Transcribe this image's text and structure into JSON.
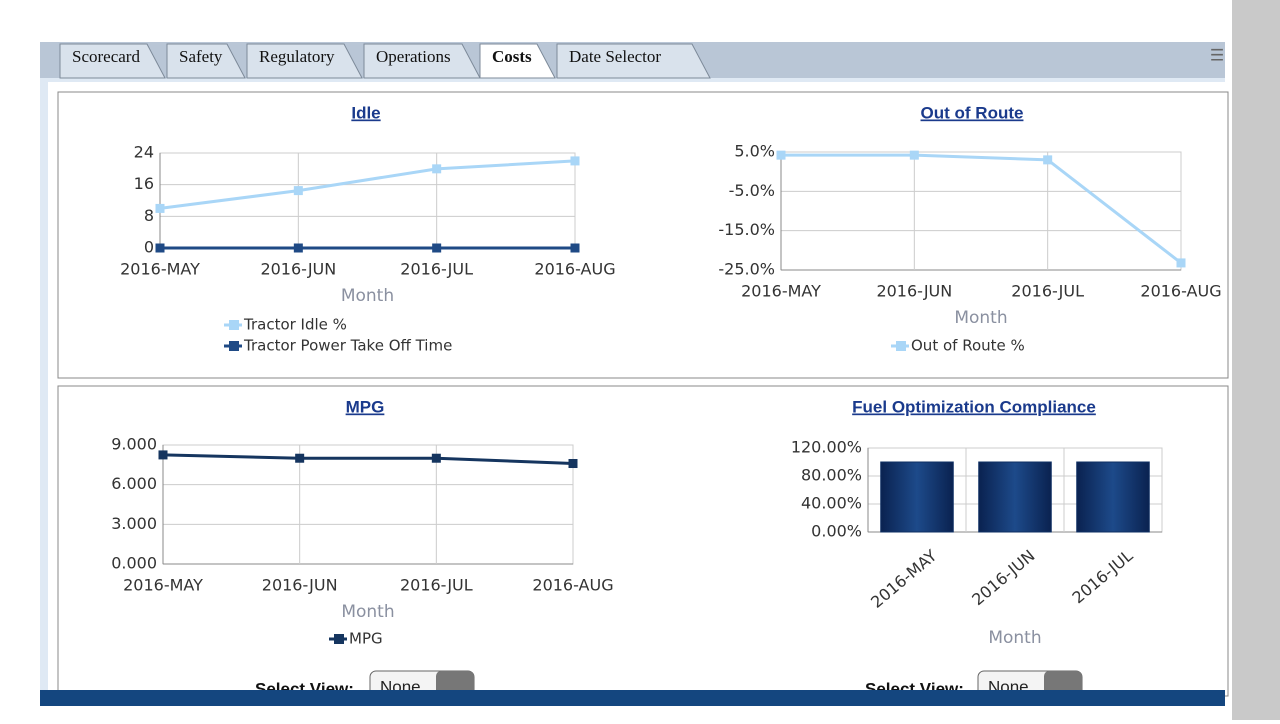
{
  "tabs": [
    "Scorecard",
    "Safety",
    "Regulatory",
    "Operations",
    "Costs",
    "Date Selector"
  ],
  "active_tab": 4,
  "chart_data": [
    {
      "type": "line",
      "title": "Idle",
      "x_label": "Month",
      "categories": [
        "2016-MAY",
        "2016-JUN",
        "2016-JUL",
        "2016-AUG"
      ],
      "series": [
        {
          "name": "Tractor Idle %",
          "color": "#a9d6f7",
          "values": [
            10,
            14.5,
            20,
            22
          ]
        },
        {
          "name": "Tractor Power Take Off Time",
          "color": "#1f4a85",
          "values": [
            0,
            0,
            0,
            0
          ]
        }
      ],
      "ylim": [
        0,
        24
      ],
      "yticks": [
        0,
        8,
        16,
        24
      ],
      "grid": true
    },
    {
      "type": "line",
      "title": "Out of Route",
      "x_label": "Month",
      "categories": [
        "2016-MAY",
        "2016-JUN",
        "2016-JUL",
        "2016-AUG"
      ],
      "series": [
        {
          "name": "Out of Route %",
          "color": "#a9d6f7",
          "values": [
            4.2,
            4.2,
            3.0,
            -23.2
          ]
        }
      ],
      "ylim": [
        -25,
        5
      ],
      "yticks": [
        {
          "value": -25,
          "label": "-25.0%"
        },
        {
          "value": -15,
          "label": "-15.0%"
        },
        {
          "value": -5,
          "label": "-5.0%"
        },
        {
          "value": 5,
          "label": "5.0%"
        }
      ],
      "grid": true
    },
    {
      "type": "line",
      "title": "MPG",
      "x_label": "Month",
      "categories": [
        "2016-MAY",
        "2016-JUN",
        "2016-JUL",
        "2016-AUG"
      ],
      "series": [
        {
          "name": "MPG",
          "color": "#15355f",
          "values": [
            8.25,
            8.0,
            8.0,
            7.6
          ]
        }
      ],
      "ylim": [
        0,
        9
      ],
      "yticks": [
        {
          "value": 0,
          "label": "0.000"
        },
        {
          "value": 3,
          "label": "3.000"
        },
        {
          "value": 6,
          "label": "6.000"
        },
        {
          "value": 9,
          "label": "9.000"
        }
      ],
      "grid": true
    },
    {
      "type": "bar",
      "title": "Fuel Optimization Compliance",
      "x_label": "Month",
      "categories": [
        "2016-MAY",
        "2016-JUN",
        "2016-JUL"
      ],
      "values": [
        100,
        100,
        100
      ],
      "color": "#0e2f63",
      "ylim": [
        0,
        120
      ],
      "yticks": [
        {
          "value": 0,
          "label": "0.00%"
        },
        {
          "value": 40,
          "label": "40.00%"
        },
        {
          "value": 80,
          "label": "80.00%"
        },
        {
          "value": 120,
          "label": "120.00%"
        }
      ],
      "grid": true
    }
  ],
  "controls": [
    {
      "label": "Select View:",
      "value": "None"
    },
    {
      "label": "Select View:",
      "value": "None"
    }
  ]
}
